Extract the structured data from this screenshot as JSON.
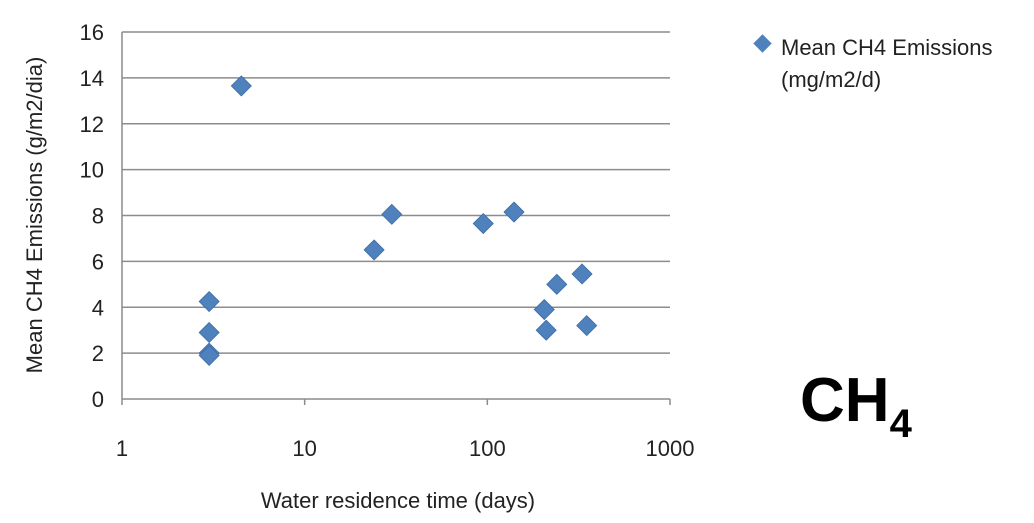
{
  "chart_data": {
    "type": "scatter",
    "title": "",
    "xlabel": "Water residence time (days)",
    "ylabel": "Mean CH4  Emissions  (g/m2/dia)",
    "x_scale": "log",
    "xlim": [
      1,
      1000
    ],
    "ylim": [
      0,
      16
    ],
    "x_ticks": [
      "1",
      "10",
      "100",
      "1000"
    ],
    "y_ticks": [
      "0",
      "2",
      "4",
      "6",
      "8",
      "10",
      "12",
      "14",
      "16"
    ],
    "grid": "horizontal",
    "legend_position": "right",
    "marker": "diamond",
    "series": [
      {
        "name": "Mean CH4  Emissions (mg/m2/d)",
        "color": "#4f81bd",
        "points": [
          {
            "x": 3,
            "y": 4.25
          },
          {
            "x": 3,
            "y": 2.9
          },
          {
            "x": 3,
            "y": 2.0
          },
          {
            "x": 3,
            "y": 1.9
          },
          {
            "x": 4.5,
            "y": 13.65
          },
          {
            "x": 24,
            "y": 6.5
          },
          {
            "x": 30,
            "y": 8.05
          },
          {
            "x": 95,
            "y": 7.65
          },
          {
            "x": 140,
            "y": 8.15
          },
          {
            "x": 205,
            "y": 3.9
          },
          {
            "x": 210,
            "y": 3.0
          },
          {
            "x": 240,
            "y": 5.0
          },
          {
            "x": 330,
            "y": 5.45
          },
          {
            "x": 350,
            "y": 3.2
          }
        ]
      }
    ]
  },
  "annotation": {
    "main": "CH",
    "sub": "4"
  }
}
